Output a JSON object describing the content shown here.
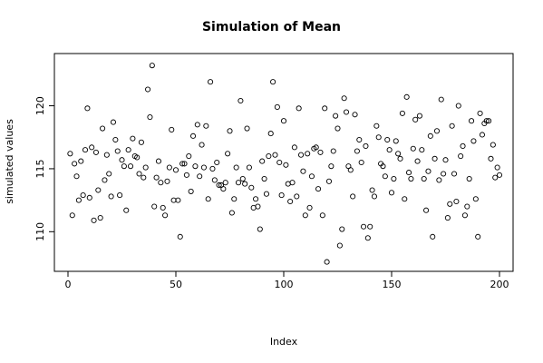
{
  "chart_data": {
    "type": "scatter",
    "title": "Simulation of Mean",
    "xlabel": "Index",
    "ylabel": "simulated values",
    "xlim": [
      0,
      200
    ],
    "ylim": [
      107.5,
      123.5
    ],
    "xticks": [
      0,
      50,
      100,
      150,
      200
    ],
    "yticks": [
      110,
      115,
      120
    ],
    "grid": false,
    "series": [
      {
        "marker": "open-circle",
        "color": "#000000",
        "x": [
          1,
          2,
          3,
          4,
          5,
          6,
          7,
          8,
          9,
          10,
          11,
          12,
          13,
          14,
          15,
          16,
          17,
          18,
          19,
          20,
          21,
          22,
          23,
          24,
          25,
          26,
          27,
          28,
          29,
          30,
          31,
          32,
          33,
          34,
          35,
          36,
          37,
          38,
          39,
          40,
          41,
          42,
          43,
          44,
          45,
          46,
          47,
          48,
          49,
          50,
          51,
          52,
          53,
          54,
          55,
          56,
          57,
          58,
          59,
          60,
          61,
          62,
          63,
          64,
          65,
          66,
          67,
          68,
          69,
          70,
          71,
          72,
          73,
          74,
          75,
          76,
          77,
          78,
          79,
          80,
          81,
          82,
          83,
          84,
          85,
          86,
          87,
          88,
          89,
          90,
          91,
          92,
          93,
          94,
          95,
          96,
          97,
          98,
          99,
          100,
          101,
          102,
          103,
          104,
          105,
          106,
          107,
          108,
          109,
          110,
          111,
          112,
          113,
          114,
          115,
          116,
          117,
          118,
          119,
          120,
          121,
          122,
          123,
          124,
          125,
          126,
          127,
          128,
          129,
          130,
          131,
          132,
          133,
          134,
          135,
          136,
          137,
          138,
          139,
          140,
          141,
          142,
          143,
          144,
          145,
          146,
          147,
          148,
          149,
          150,
          151,
          152,
          153,
          154,
          155,
          156,
          157,
          158,
          159,
          160,
          161,
          162,
          163,
          164,
          165,
          166,
          167,
          168,
          169,
          170,
          171,
          172,
          173,
          174,
          175,
          176,
          177,
          178,
          179,
          180,
          181,
          182,
          183,
          184,
          185,
          186,
          187,
          188,
          189,
          190,
          191,
          192,
          193,
          194,
          195,
          196,
          197,
          198,
          199,
          200
        ],
        "y": [
          116.2,
          111.3,
          115.4,
          114.4,
          112.5,
          115.6,
          112.9,
          116.5,
          119.8,
          112.7,
          116.7,
          110.9,
          116.3,
          113.3,
          111.1,
          118.2,
          114.1,
          116.1,
          114.6,
          112.8,
          118.7,
          117.3,
          116.4,
          112.9,
          115.7,
          115.2,
          111.7,
          116.5,
          115.2,
          117.4,
          116.0,
          115.9,
          114.6,
          117.1,
          114.3,
          115.1,
          121.3,
          119.1,
          123.2,
          112.0,
          114.3,
          115.6,
          113.9,
          111.9,
          111.3,
          114.0,
          115.1,
          118.1,
          112.5,
          114.9,
          112.5,
          109.6,
          115.4,
          115.4,
          114.5,
          116.0,
          113.2,
          117.6,
          115.2,
          118.5,
          114.4,
          116.9,
          115.1,
          118.4,
          112.6,
          121.9,
          115.0,
          114.1,
          115.5,
          113.7,
          113.7,
          113.4,
          113.9,
          116.2,
          118.0,
          111.5,
          112.6,
          115.1,
          113.9,
          120.4,
          114.2,
          113.8,
          118.2,
          115.1,
          113.5,
          111.9,
          112.6,
          112.0,
          110.2,
          115.6,
          114.2,
          113.0,
          116.0,
          117.8,
          121.9,
          116.1,
          119.9,
          115.5,
          112.9,
          118.8,
          115.3,
          113.8,
          112.4,
          113.9,
          116.7,
          112.8,
          119.8,
          116.1,
          114.8,
          111.3,
          116.2,
          111.9,
          114.4,
          116.6,
          116.7,
          113.4,
          116.3,
          111.3,
          119.8,
          107.6,
          114.0,
          115.2,
          116.4,
          119.2,
          118.2,
          108.9,
          110.2,
          120.6,
          119.5,
          115.2,
          114.9,
          112.8,
          119.3,
          116.4,
          117.3,
          115.5,
          110.4,
          116.8,
          109.5,
          110.4,
          113.3,
          112.8,
          118.4,
          117.5,
          115.4,
          115.2,
          114.4,
          117.3,
          116.5,
          113.1,
          114.2,
          117.2,
          116.2,
          115.8,
          119.4,
          112.6,
          120.7,
          114.7,
          114.2,
          116.6,
          118.9,
          115.6,
          119.2,
          116.5,
          114.2,
          111.7,
          114.8,
          117.6,
          109.6,
          115.8,
          118.0,
          114.1,
          120.5,
          114.6,
          115.7,
          111.1,
          112.2,
          118.4,
          114.6,
          112.4,
          120.0,
          116.0,
          116.8,
          111.3,
          112.0,
          114.2,
          118.8,
          117.2,
          112.6,
          109.6,
          119.4,
          117.7,
          118.6,
          118.8,
          118.8,
          115.8,
          116.9,
          114.3,
          115.1,
          114.5
        ]
      }
    ]
  }
}
